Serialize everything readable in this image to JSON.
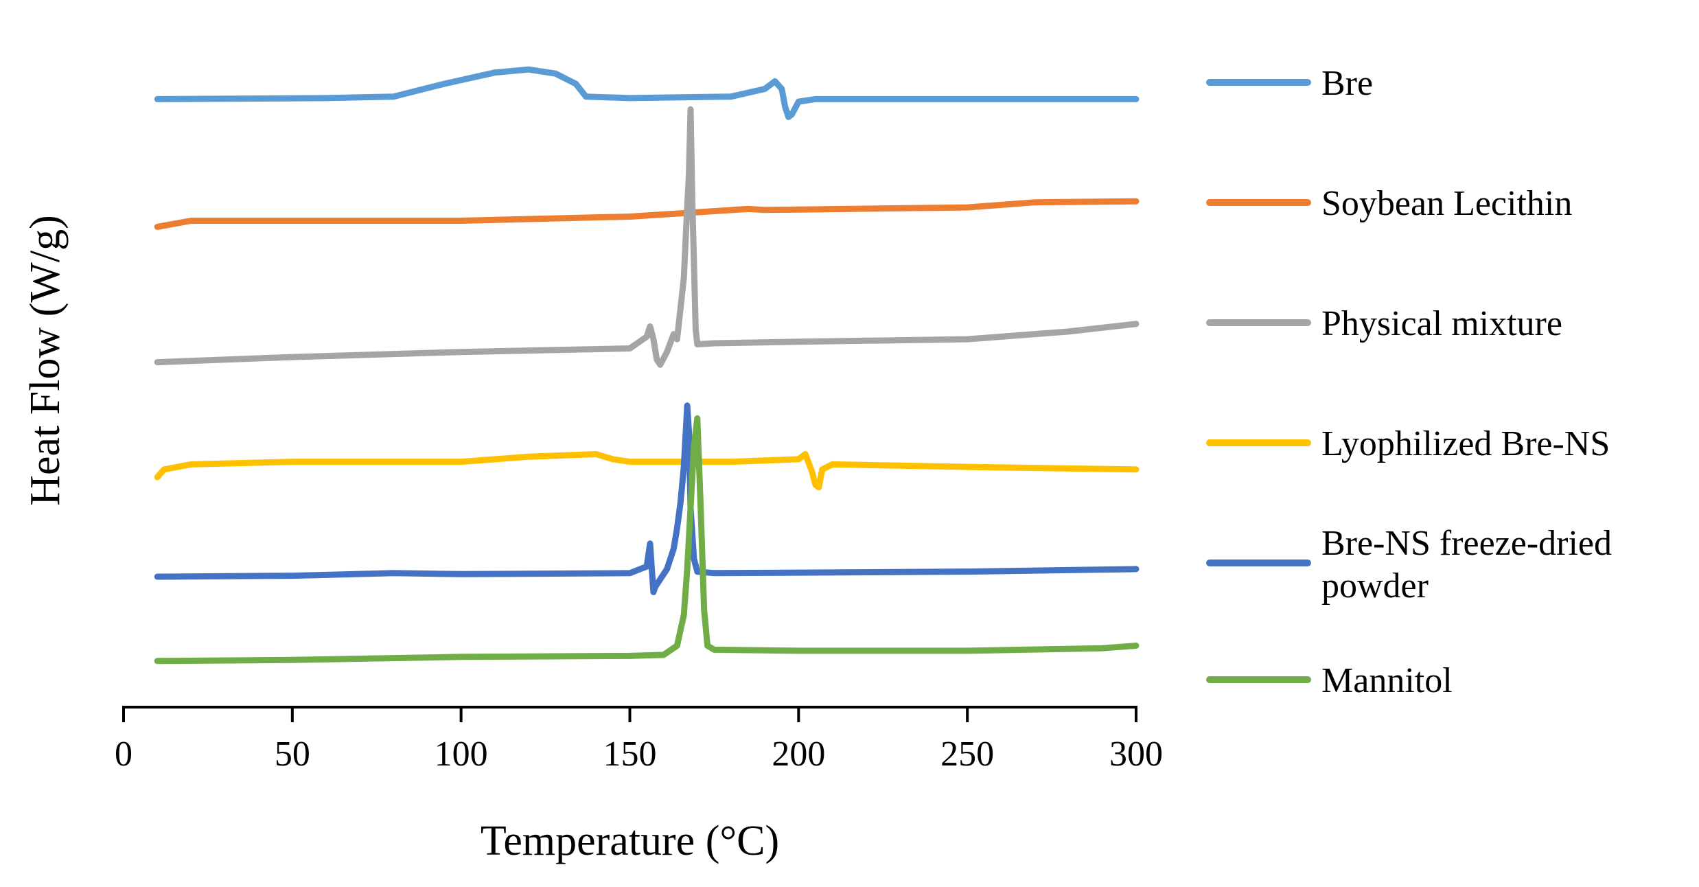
{
  "chart_data": {
    "type": "line",
    "title": "",
    "xlabel": "Temperature (°C)",
    "ylabel": "Heat Flow (W/g)",
    "xlim": [
      0,
      300
    ],
    "x_ticks": [
      0,
      50,
      100,
      150,
      200,
      250,
      300
    ],
    "x_tick_labels": [
      "0",
      "50",
      "100",
      "150",
      "200",
      "250",
      "300"
    ],
    "ylim": [
      -0.5,
      12
    ],
    "y_ticks_shown": false,
    "grid": false,
    "legend_position": "right",
    "series": [
      {
        "name": "Bre",
        "color": "#5B9BD5",
        "points": [
          [
            10,
            11
          ],
          [
            60,
            11.02
          ],
          [
            80,
            11.05
          ],
          [
            95,
            11.3
          ],
          [
            110,
            11.52
          ],
          [
            120,
            11.58
          ],
          [
            128,
            11.5
          ],
          [
            134,
            11.3
          ],
          [
            137,
            11.05
          ],
          [
            150,
            11.02
          ],
          [
            180,
            11.05
          ],
          [
            190,
            11.2
          ],
          [
            193,
            11.35
          ],
          [
            195,
            11.2
          ],
          [
            196,
            10.85
          ],
          [
            197,
            10.65
          ],
          [
            198,
            10.7
          ],
          [
            200,
            10.95
          ],
          [
            205,
            11.0
          ],
          [
            250,
            11.0
          ],
          [
            300,
            11.0
          ]
        ]
      },
      {
        "name": "Soybean Lecithin",
        "color": "#ED7D31",
        "points": [
          [
            10,
            8.5
          ],
          [
            20,
            8.62
          ],
          [
            50,
            8.62
          ],
          [
            100,
            8.62
          ],
          [
            150,
            8.7
          ],
          [
            185,
            8.85
          ],
          [
            190,
            8.83
          ],
          [
            250,
            8.88
          ],
          [
            270,
            8.98
          ],
          [
            300,
            9.0
          ]
        ]
      },
      {
        "name": "Physical mixture",
        "color": "#A5A5A5",
        "points": [
          [
            10,
            5.85
          ],
          [
            50,
            5.95
          ],
          [
            100,
            6.05
          ],
          [
            150,
            6.12
          ],
          [
            155,
            6.35
          ],
          [
            156,
            6.55
          ],
          [
            157,
            6.3
          ],
          [
            158,
            5.9
          ],
          [
            159,
            5.8
          ],
          [
            161,
            6.05
          ],
          [
            163,
            6.4
          ],
          [
            164,
            6.3
          ],
          [
            165,
            6.9
          ],
          [
            166,
            7.5
          ],
          [
            167,
            8.9
          ],
          [
            167.5,
            9.5
          ],
          [
            168,
            10.8
          ],
          [
            168.5,
            9.0
          ],
          [
            169,
            7.8
          ],
          [
            169.5,
            6.5
          ],
          [
            170,
            6.2
          ],
          [
            175,
            6.22
          ],
          [
            200,
            6.25
          ],
          [
            250,
            6.3
          ],
          [
            280,
            6.45
          ],
          [
            300,
            6.6
          ]
        ]
      },
      {
        "name": "Lyophilized Bre-NS",
        "color": "#FFC000",
        "points": [
          [
            10,
            3.6
          ],
          [
            12,
            3.75
          ],
          [
            20,
            3.85
          ],
          [
            50,
            3.9
          ],
          [
            100,
            3.9
          ],
          [
            120,
            4.0
          ],
          [
            140,
            4.05
          ],
          [
            145,
            3.95
          ],
          [
            150,
            3.9
          ],
          [
            180,
            3.9
          ],
          [
            200,
            3.95
          ],
          [
            202,
            4.05
          ],
          [
            204,
            3.7
          ],
          [
            205,
            3.45
          ],
          [
            206,
            3.4
          ],
          [
            207,
            3.75
          ],
          [
            210,
            3.85
          ],
          [
            250,
            3.8
          ],
          [
            300,
            3.75
          ]
        ]
      },
      {
        "name": "Bre-NS freeze-dried powder",
        "color": "#4472C4",
        "points": [
          [
            10,
            1.65
          ],
          [
            50,
            1.67
          ],
          [
            80,
            1.72
          ],
          [
            100,
            1.7
          ],
          [
            150,
            1.72
          ],
          [
            155,
            1.85
          ],
          [
            156,
            2.3
          ],
          [
            156.5,
            1.8
          ],
          [
            157,
            1.35
          ],
          [
            157.5,
            1.45
          ],
          [
            159,
            1.6
          ],
          [
            161,
            1.8
          ],
          [
            163,
            2.2
          ],
          [
            164,
            2.6
          ],
          [
            165,
            3.1
          ],
          [
            166,
            3.8
          ],
          [
            167,
            5.0
          ],
          [
            167.5,
            4.5
          ],
          [
            168,
            3.0
          ],
          [
            169,
            2.0
          ],
          [
            170,
            1.75
          ],
          [
            175,
            1.72
          ],
          [
            200,
            1.73
          ],
          [
            250,
            1.75
          ],
          [
            280,
            1.78
          ],
          [
            300,
            1.8
          ]
        ]
      },
      {
        "name": "Mannitol",
        "color": "#70AD47",
        "points": [
          [
            10,
            0.0
          ],
          [
            50,
            0.02
          ],
          [
            100,
            0.08
          ],
          [
            150,
            0.1
          ],
          [
            160,
            0.12
          ],
          [
            164,
            0.3
          ],
          [
            166,
            0.9
          ],
          [
            167,
            1.8
          ],
          [
            168,
            3.0
          ],
          [
            169,
            4.2
          ],
          [
            170,
            4.75
          ],
          [
            171,
            3.0
          ],
          [
            172,
            1.0
          ],
          [
            173,
            0.3
          ],
          [
            175,
            0.22
          ],
          [
            200,
            0.2
          ],
          [
            250,
            0.2
          ],
          [
            290,
            0.25
          ],
          [
            300,
            0.3
          ]
        ]
      }
    ]
  }
}
